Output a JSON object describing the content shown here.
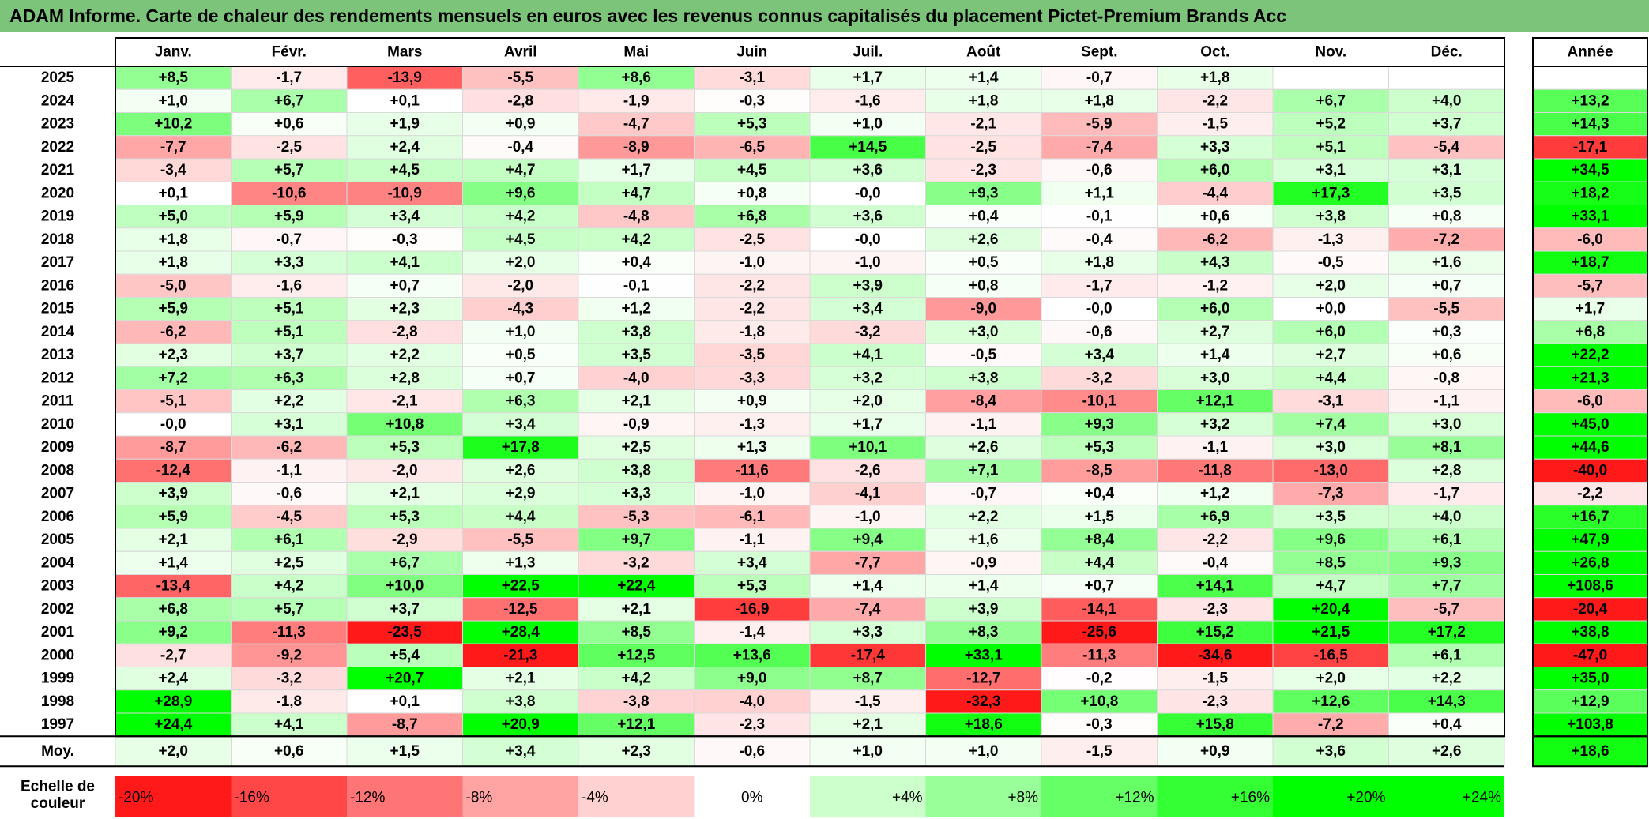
{
  "title": "ADAM Informe. Carte de chaleur des rendements mensuels en euros avec les revenus connus capitalisés du placement Pictet-Premium Brands Acc",
  "chart_data": {
    "type": "heatmap",
    "title": "ADAM Informe. Carte de chaleur des rendements mensuels en euros avec les revenus connus capitalisés du placement Pictet-Premium Brands Acc",
    "months": [
      "Janv.",
      "Févr.",
      "Mars",
      "Avril",
      "Mai",
      "Juin",
      "Juil.",
      "Août",
      "Sept.",
      "Oct.",
      "Nov.",
      "Déc."
    ],
    "year_header": "Année",
    "avg_label": "Moy.",
    "rows": [
      {
        "year": "2025",
        "values": [
          "+8,5",
          "-1,7",
          "-13,9",
          "-5,5",
          "+8,6",
          "-3,1",
          "+1,7",
          "+1,4",
          "-0,7",
          "+1,8",
          "",
          ""
        ],
        "annual": ""
      },
      {
        "year": "2024",
        "values": [
          "+1,0",
          "+6,7",
          "+0,1",
          "-2,8",
          "-1,9",
          "-0,3",
          "-1,6",
          "+1,8",
          "+1,8",
          "-2,2",
          "+6,7",
          "+4,0"
        ],
        "annual": "+13,2"
      },
      {
        "year": "2023",
        "values": [
          "+10,2",
          "+0,6",
          "+1,9",
          "+0,9",
          "-4,7",
          "+5,3",
          "+1,0",
          "-2,1",
          "-5,9",
          "-1,5",
          "+5,2",
          "+3,7"
        ],
        "annual": "+14,3"
      },
      {
        "year": "2022",
        "values": [
          "-7,7",
          "-2,5",
          "+2,4",
          "-0,4",
          "-8,9",
          "-6,5",
          "+14,5",
          "-2,5",
          "-7,4",
          "+3,3",
          "+5,1",
          "-5,4"
        ],
        "annual": "-17,1"
      },
      {
        "year": "2021",
        "values": [
          "-3,4",
          "+5,7",
          "+4,5",
          "+4,7",
          "+1,7",
          "+4,5",
          "+3,6",
          "-2,3",
          "-0,6",
          "+6,0",
          "+3,1",
          "+3,1"
        ],
        "annual": "+34,5"
      },
      {
        "year": "2020",
        "values": [
          "+0,1",
          "-10,6",
          "-10,9",
          "+9,6",
          "+4,7",
          "+0,8",
          "-0,0",
          "+9,3",
          "+1,1",
          "-4,4",
          "+17,3",
          "+3,5"
        ],
        "annual": "+18,2"
      },
      {
        "year": "2019",
        "values": [
          "+5,0",
          "+5,9",
          "+3,4",
          "+4,2",
          "-4,8",
          "+6,8",
          "+3,6",
          "+0,4",
          "-0,1",
          "+0,6",
          "+3,8",
          "+0,8"
        ],
        "annual": "+33,1"
      },
      {
        "year": "2018",
        "values": [
          "+1,8",
          "-0,7",
          "-0,3",
          "+4,5",
          "+4,2",
          "-2,5",
          "-0,0",
          "+2,6",
          "-0,4",
          "-6,2",
          "-1,3",
          "-7,2"
        ],
        "annual": "-6,0"
      },
      {
        "year": "2017",
        "values": [
          "+1,8",
          "+3,3",
          "+4,1",
          "+2,0",
          "+0,4",
          "-1,0",
          "-1,0",
          "+0,5",
          "+1,8",
          "+4,3",
          "-0,5",
          "+1,6"
        ],
        "annual": "+18,7"
      },
      {
        "year": "2016",
        "values": [
          "-5,0",
          "-1,6",
          "+0,7",
          "-2,0",
          "-0,1",
          "-2,2",
          "+3,9",
          "+0,8",
          "-1,7",
          "-1,2",
          "+2,0",
          "+0,7"
        ],
        "annual": "-5,7"
      },
      {
        "year": "2015",
        "values": [
          "+5,9",
          "+5,1",
          "+2,3",
          "-4,3",
          "+1,2",
          "-2,2",
          "+3,4",
          "-9,0",
          "-0,0",
          "+6,0",
          "+0,0",
          "-5,5"
        ],
        "annual": "+1,7"
      },
      {
        "year": "2014",
        "values": [
          "-6,2",
          "+5,1",
          "-2,8",
          "+1,0",
          "+3,8",
          "-1,8",
          "-3,2",
          "+3,0",
          "-0,6",
          "+2,7",
          "+6,0",
          "+0,3"
        ],
        "annual": "+6,8"
      },
      {
        "year": "2013",
        "values": [
          "+2,3",
          "+3,7",
          "+2,2",
          "+0,5",
          "+3,5",
          "-3,5",
          "+4,1",
          "-0,5",
          "+3,4",
          "+1,4",
          "+2,7",
          "+0,6"
        ],
        "annual": "+22,2"
      },
      {
        "year": "2012",
        "values": [
          "+7,2",
          "+6,3",
          "+2,8",
          "+0,7",
          "-4,0",
          "-3,3",
          "+3,2",
          "+3,8",
          "-3,2",
          "+3,0",
          "+4,4",
          "-0,8"
        ],
        "annual": "+21,3"
      },
      {
        "year": "2011",
        "values": [
          "-5,1",
          "+2,2",
          "-2,1",
          "+6,3",
          "+2,1",
          "+0,9",
          "+2,0",
          "-8,4",
          "-10,1",
          "+12,1",
          "-3,1",
          "-1,1"
        ],
        "annual": "-6,0"
      },
      {
        "year": "2010",
        "values": [
          "-0,0",
          "+3,1",
          "+10,8",
          "+3,4",
          "-0,9",
          "-1,3",
          "+1,7",
          "-1,1",
          "+9,3",
          "+3,2",
          "+7,4",
          "+3,0"
        ],
        "annual": "+45,0"
      },
      {
        "year": "2009",
        "values": [
          "-8,7",
          "-6,2",
          "+5,3",
          "+17,8",
          "+2,5",
          "+1,3",
          "+10,1",
          "+2,6",
          "+5,3",
          "-1,1",
          "+3,0",
          "+8,1"
        ],
        "annual": "+44,6"
      },
      {
        "year": "2008",
        "values": [
          "-12,4",
          "-1,1",
          "-2,0",
          "+2,6",
          "+3,8",
          "-11,6",
          "-2,6",
          "+7,1",
          "-8,5",
          "-11,8",
          "-13,0",
          "+2,8"
        ],
        "annual": "-40,0"
      },
      {
        "year": "2007",
        "values": [
          "+3,9",
          "-0,6",
          "+2,1",
          "+2,9",
          "+3,3",
          "-1,0",
          "-4,1",
          "-0,7",
          "+0,4",
          "+1,2",
          "-7,3",
          "-1,7"
        ],
        "annual": "-2,2"
      },
      {
        "year": "2006",
        "values": [
          "+5,9",
          "-4,5",
          "+5,3",
          "+4,4",
          "-5,3",
          "-6,1",
          "-1,0",
          "+2,2",
          "+1,5",
          "+6,9",
          "+3,5",
          "+4,0"
        ],
        "annual": "+16,7"
      },
      {
        "year": "2005",
        "values": [
          "+2,1",
          "+6,1",
          "-2,9",
          "-5,5",
          "+9,7",
          "-1,1",
          "+9,4",
          "+1,6",
          "+8,4",
          "-2,2",
          "+9,6",
          "+6,1"
        ],
        "annual": "+47,9"
      },
      {
        "year": "2004",
        "values": [
          "+1,4",
          "+2,5",
          "+6,7",
          "+1,3",
          "-3,2",
          "+3,4",
          "-7,7",
          "-0,9",
          "+4,4",
          "-0,4",
          "+8,5",
          "+9,3"
        ],
        "annual": "+26,8"
      },
      {
        "year": "2003",
        "values": [
          "-13,4",
          "+4,2",
          "+10,0",
          "+22,5",
          "+22,4",
          "+5,3",
          "+1,4",
          "+1,4",
          "+0,7",
          "+14,1",
          "+4,7",
          "+7,7"
        ],
        "annual": "+108,6"
      },
      {
        "year": "2002",
        "values": [
          "+6,8",
          "+5,7",
          "+3,7",
          "-12,5",
          "+2,1",
          "-16,9",
          "-7,4",
          "+3,9",
          "-14,1",
          "-2,3",
          "+20,4",
          "-5,7"
        ],
        "annual": "-20,4"
      },
      {
        "year": "2001",
        "values": [
          "+9,2",
          "-11,3",
          "-23,5",
          "+28,4",
          "+8,5",
          "-1,4",
          "+3,3",
          "+8,3",
          "-25,6",
          "+15,2",
          "+21,5",
          "+17,2"
        ],
        "annual": "+38,8"
      },
      {
        "year": "2000",
        "values": [
          "-2,7",
          "-9,2",
          "+5,4",
          "-21,3",
          "+12,5",
          "+13,6",
          "-17,4",
          "+33,1",
          "-11,3",
          "-34,6",
          "-16,5",
          "+6,1"
        ],
        "annual": "-47,0"
      },
      {
        "year": "1999",
        "values": [
          "+2,4",
          "-3,2",
          "+20,7",
          "+2,1",
          "+4,2",
          "+9,0",
          "+8,7",
          "-12,7",
          "-0,2",
          "-1,5",
          "+2,0",
          "+2,2"
        ],
        "annual": "+35,0"
      },
      {
        "year": "1998",
        "values": [
          "+28,9",
          "-1,8",
          "+0,1",
          "+3,8",
          "-3,8",
          "-4,0",
          "-1,5",
          "-32,3",
          "+10,8",
          "-2,3",
          "+12,6",
          "+14,3"
        ],
        "annual": "+12,9"
      },
      {
        "year": "1997",
        "values": [
          "+24,4",
          "+4,1",
          "-8,7",
          "+20,9",
          "+12,1",
          "-2,3",
          "+2,1",
          "+18,6",
          "-0,3",
          "+15,8",
          "-7,2",
          "+0,4"
        ],
        "annual": "+103,8"
      }
    ],
    "averages": [
      "+2,0",
      "+0,6",
      "+1,5",
      "+3,4",
      "+2,3",
      "-0,6",
      "+1,0",
      "+1,0",
      "-1,5",
      "+0,9",
      "+3,6",
      "+2,6"
    ],
    "average_annual": "+18,6",
    "scale_label_line1": "Echelle de",
    "scale_label_line2": "couleur",
    "scale": [
      "-20%",
      "-16%",
      "-12%",
      "-8%",
      "-4%",
      "0%",
      "+4%",
      "+8%",
      "+12%",
      "+16%",
      "+20%",
      "+24%"
    ],
    "scale_values": [
      -20,
      -16,
      -12,
      -8,
      -4,
      0,
      4,
      8,
      12,
      16,
      20,
      24
    ],
    "colors": {
      "title_bg": "#7CC47A",
      "negative_max": "#FF0000",
      "positive_max": "#00FF00",
      "neutral": "#FFFFFF"
    }
  }
}
